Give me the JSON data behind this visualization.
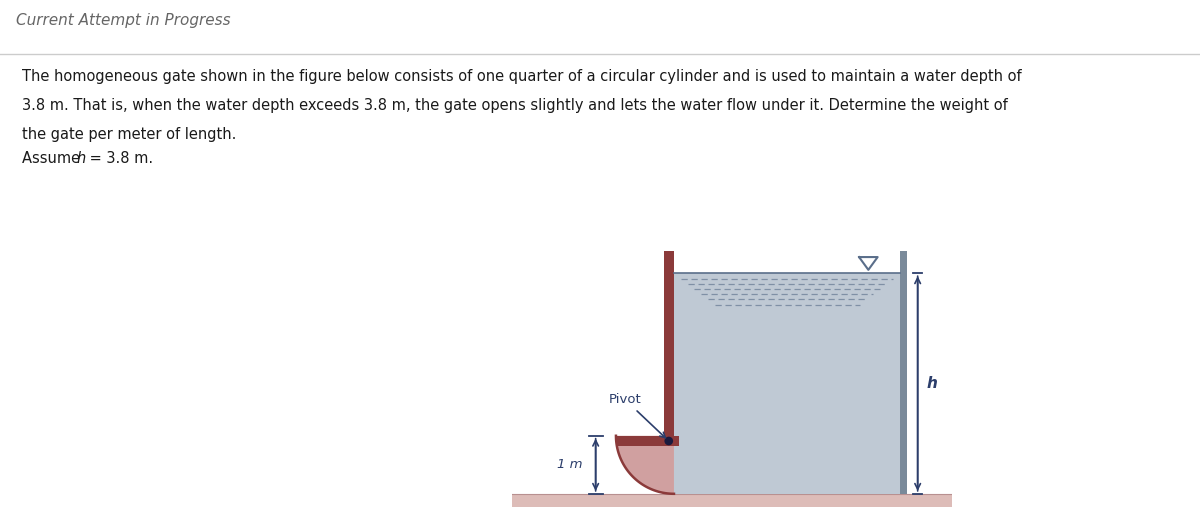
{
  "title": "Current Attempt in Progress",
  "text_line1": "The homogeneous gate shown in the figure below consists of one quarter of a circular cylinder and is used to maintain a water depth of",
  "text_line2": "3.8 m. That is, when the water depth exceeds 3.8 m, the gate opens slightly and lets the water flow under it. Determine the weight of",
  "text_line3": "the gate per meter of length.",
  "text_line4": "Assume h = 3.8 m.",
  "bg_color": "#ffffff",
  "water_color": "#b8c4d0",
  "gate_color": "#8B3A3A",
  "gate_fill_color": "#c89090",
  "floor_color": "#ddbcb8",
  "dim_color": "#2c3e6b",
  "text_color": "#1a1a1a",
  "pivot_label": "Pivot",
  "h_label": "h",
  "one_m_label": "1 m",
  "title_color": "#666666",
  "sep_color": "#cccccc"
}
